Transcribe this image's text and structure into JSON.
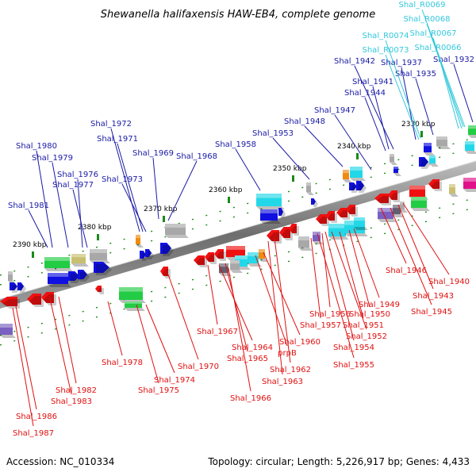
{
  "title": "Shewanella halifaxensis HAW-EB4, complete genome",
  "footer": {
    "accession": "Accession: NC_010334",
    "summary": "Topology: circular; Length: 5,226,917 bp; Genes: 4,433"
  },
  "colors": {
    "backbone": "#808080",
    "upper_label": "#1a1aa6",
    "lower_label": "#e01010",
    "rna_label": "#33c8dc"
  },
  "kbp_ticks": [
    "2390 kbp",
    "2380 kbp",
    "2370 kbp",
    "2360 kbp",
    "2350 kbp",
    "2340 kbp",
    "2330 kbp"
  ],
  "upper_labels": [
    "Shal_1980",
    "Shal_1979",
    "Shal_1976",
    "Shal_1977",
    "Shal_1981",
    "Shal_1972",
    "Shal_1971",
    "Shal_1973",
    "Shal_1969",
    "Shal_1968",
    "Shal_1958",
    "Shal_1953",
    "Shal_1948",
    "Shal_1947",
    "Shal_1944",
    "Shal_1941",
    "Shal_1942",
    "Shal_1937",
    "Shal_1935",
    "Shal_1932"
  ],
  "rna_labels": [
    "Shal_R0069",
    "Shal_R0068",
    "Shal_R0067",
    "Shal_R0066",
    "Shal_R0074",
    "Shal_R0073"
  ],
  "lower_labels": [
    "Shal_1946",
    "Shal_1940",
    "Shal_1943",
    "Shal_1945",
    "Shal_1949",
    "Shal_1950",
    "Shal_1956",
    "Shal_1951",
    "Shal_1957",
    "Shal_1952",
    "Shal_1954",
    "Shal_1955",
    "Shal_1967",
    "Shal_1964",
    "Shal_1965",
    "Shal_1960",
    "prpB",
    "Shal_1962",
    "Shal_1963",
    "Shal_1966",
    "Shal_1970",
    "Shal_1974",
    "Shal_1975",
    "Shal_1978",
    "Shal_1982",
    "Shal_1983",
    "Shal_1986",
    "Shal_1987"
  ]
}
